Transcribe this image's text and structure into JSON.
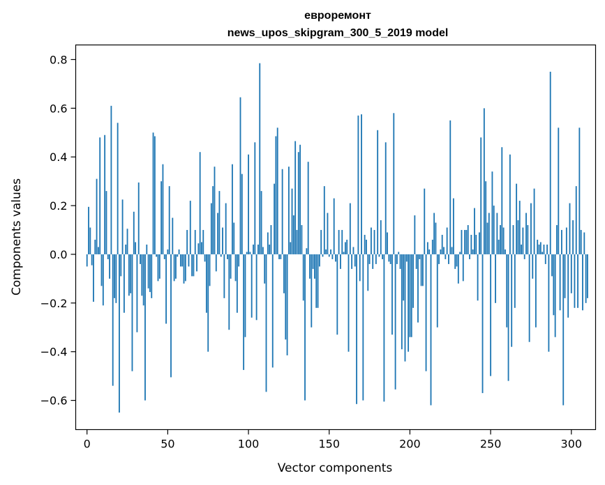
{
  "chart_data": {
    "type": "bar",
    "title_lines": [
      "евроремонт",
      "news_upos_skipgram_300_5_2019 model"
    ],
    "xlabel": "Vector components",
    "ylabel": "Components values",
    "xlim": [
      -7,
      315
    ],
    "ylim": [
      -0.72,
      0.86
    ],
    "xticks": [
      0,
      50,
      100,
      150,
      200,
      250,
      300
    ],
    "yticks": [
      -0.6,
      -0.4,
      -0.2,
      0.0,
      0.2,
      0.4,
      0.6,
      0.8
    ],
    "xtick_labels": [
      "0",
      "50",
      "100",
      "150",
      "200",
      "250",
      "300"
    ],
    "ytick_labels": [
      "−0.6",
      "−0.4",
      "−0.2",
      "0.0",
      "0.2",
      "0.4",
      "0.6",
      "0.8"
    ],
    "grid": false,
    "bar_color": "#1f77b4",
    "values": [
      -0.05,
      0.195,
      0.11,
      -0.045,
      -0.195,
      0.06,
      0.31,
      0.03,
      0.48,
      -0.13,
      -0.21,
      0.49,
      0.26,
      -0.02,
      -0.1,
      0.61,
      -0.54,
      -0.18,
      -0.2,
      0.54,
      -0.65,
      -0.09,
      0.225,
      -0.24,
      0.04,
      0.105,
      -0.17,
      -0.16,
      -0.48,
      0.175,
      0.05,
      -0.32,
      0.295,
      -0.04,
      -0.17,
      -0.21,
      -0.6,
      0.04,
      -0.14,
      -0.155,
      -0.18,
      0.5,
      0.485,
      -0.01,
      -0.11,
      -0.1,
      0.3,
      0.37,
      -0.02,
      -0.285,
      0.02,
      0.28,
      -0.505,
      0.15,
      -0.11,
      -0.1,
      -0.01,
      0.02,
      -0.05,
      -0.05,
      -0.12,
      -0.11,
      0.1,
      -0.05,
      0.22,
      -0.09,
      -0.09,
      0.1,
      -0.07,
      0.045,
      0.42,
      0.05,
      0.1,
      -0.03,
      -0.24,
      -0.4,
      -0.13,
      0.21,
      0.28,
      0.36,
      -0.07,
      0.17,
      0.26,
      -0.01,
      0.11,
      -0.18,
      0.21,
      -0.02,
      -0.31,
      -0.1,
      0.37,
      0.13,
      -0.11,
      -0.24,
      -0.05,
      0.645,
      0.33,
      -0.475,
      -0.34,
      0.01,
      0.41,
      0.01,
      -0.26,
      0.04,
      0.46,
      -0.27,
      0.04,
      0.785,
      0.26,
      0.03,
      -0.12,
      -0.565,
      0.09,
      0.04,
      0.12,
      -0.465,
      0.29,
      0.485,
      0.52,
      -0.02,
      -0.02,
      0.35,
      -0.16,
      -0.35,
      -0.415,
      0.36,
      0.05,
      0.27,
      0.16,
      0.465,
      0.1,
      0.42,
      0.45,
      0.12,
      -0.19,
      -0.6,
      0.025,
      0.38,
      -0.1,
      -0.3,
      -0.06,
      -0.1,
      -0.22,
      -0.22,
      -0.05,
      0.1,
      -0.01,
      0.28,
      0.02,
      0.17,
      -0.01,
      0.02,
      -0.02,
      0.23,
      -0.03,
      -0.33,
      0.1,
      -0.06,
      0.1,
      0.01,
      0.05,
      0.06,
      -0.4,
      0.21,
      -0.06,
      0.03,
      -0.05,
      -0.615,
      0.57,
      -0.11,
      0.575,
      -0.6,
      0.08,
      0.06,
      -0.15,
      -0.04,
      0.11,
      -0.06,
      0.1,
      -0.04,
      0.51,
      -0.01,
      0.14,
      -0.02,
      -0.605,
      0.46,
      0.09,
      -0.03,
      -0.04,
      -0.33,
      0.58,
      -0.555,
      -0.04,
      0.01,
      -0.06,
      -0.39,
      -0.19,
      -0.44,
      -0.03,
      -0.4,
      -0.34,
      -0.34,
      -0.22,
      0.16,
      -0.06,
      -0.28,
      -0.02,
      -0.13,
      -0.13,
      0.27,
      -0.48,
      0.05,
      0.02,
      -0.62,
      0.06,
      0.17,
      0.13,
      -0.3,
      -0.04,
      0.02,
      0.08,
      0.03,
      -0.02,
      0.11,
      -0.04,
      0.55,
      0.03,
      0.23,
      -0.06,
      -0.05,
      -0.12,
      0.01,
      0.1,
      -0.11,
      0.1,
      0.1,
      0.12,
      -0.02,
      0.08,
      0.02,
      0.19,
      0.08,
      -0.19,
      0.09,
      0.48,
      -0.57,
      0.6,
      0.3,
      0.13,
      0.17,
      -0.5,
      0.34,
      0.2,
      -0.2,
      0.17,
      0.06,
      0.12,
      0.44,
      0.11,
      0.02,
      -0.3,
      -0.52,
      0.41,
      -0.38,
      0.12,
      -0.22,
      0.29,
      0.14,
      0.22,
      0.04,
      0.11,
      -0.02,
      0.17,
      0.12,
      -0.36,
      0.21,
      -0.1,
      0.27,
      -0.3,
      0.06,
      0.04,
      0.05,
      0.01,
      0.04,
      -0.04,
      0.04,
      -0.4,
      0.75,
      -0.09,
      -0.25,
      -0.34,
      0.12,
      0.52,
      -0.23,
      0.1,
      -0.62,
      -0.18,
      0.11,
      -0.26,
      0.21,
      -0.16,
      0.14,
      -0.22,
      0.28,
      -0.22,
      0.52,
      0.1,
      -0.23,
      0.09,
      -0.2,
      -0.18
    ]
  }
}
